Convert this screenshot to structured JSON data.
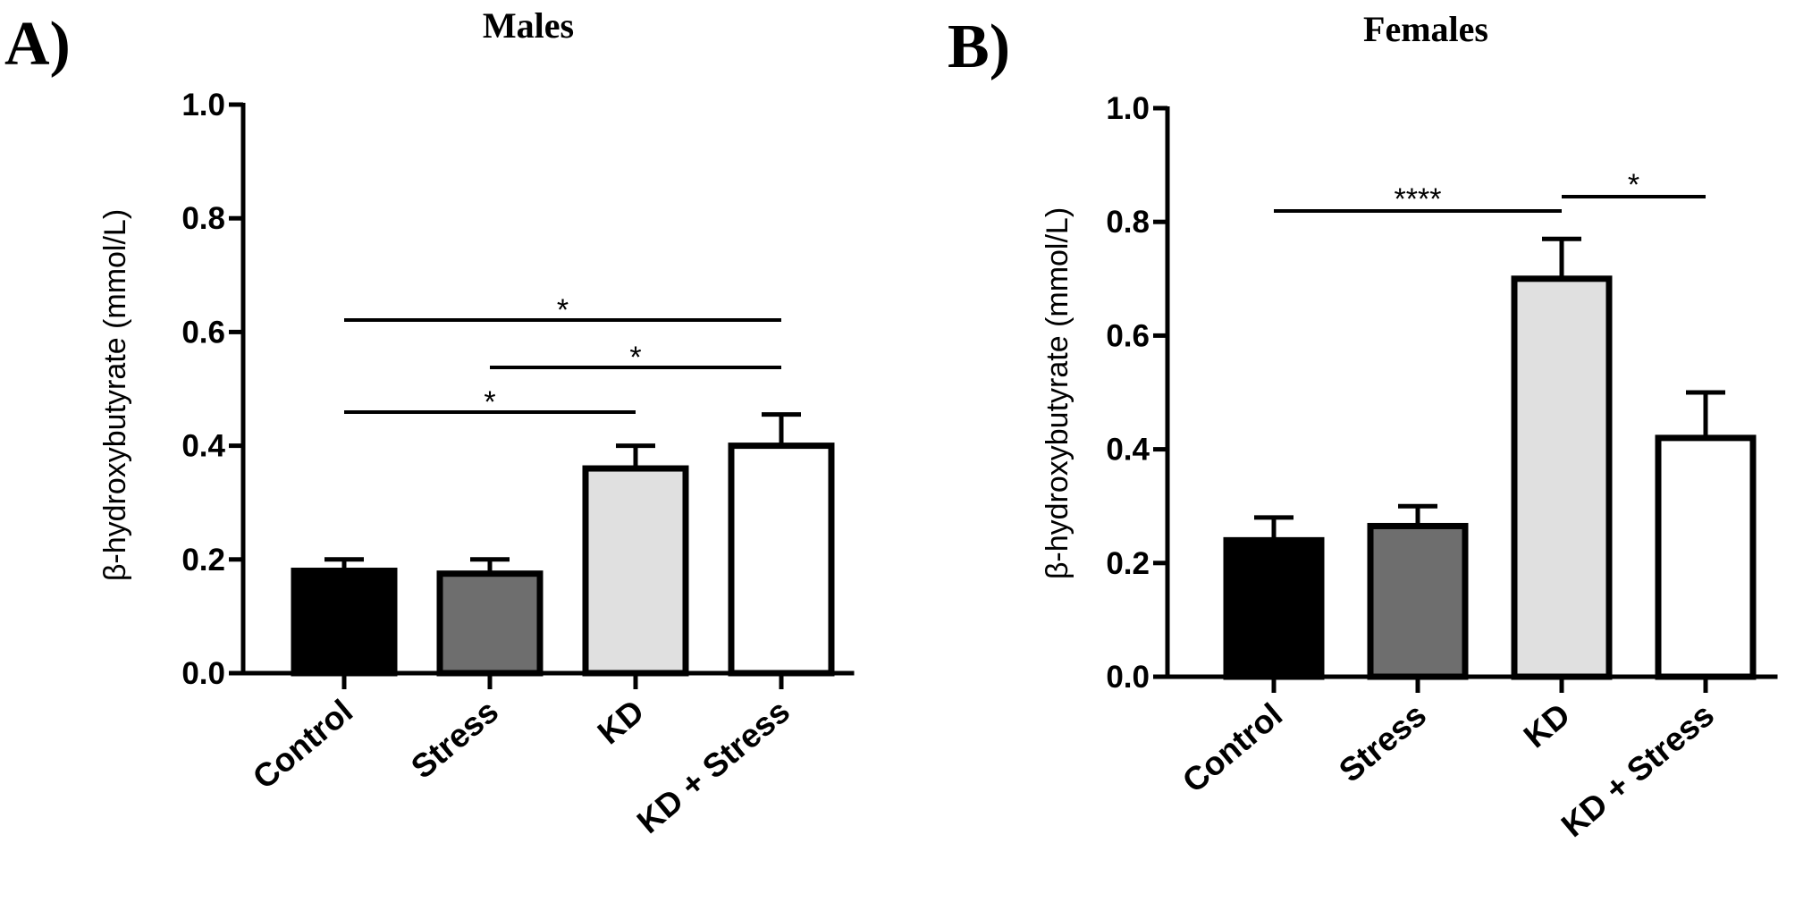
{
  "panels": [
    {
      "letter": "A)",
      "title": "Males",
      "ylabel": "β-hydroxybutyrate (mmol/L)",
      "tick_labels": [
        "0.0",
        "0.2",
        "0.4",
        "0.6",
        "0.8",
        "1.0"
      ]
    },
    {
      "letter": "B)",
      "title": "Females",
      "ylabel": "β-hydroxybutyrate (mmol/L)",
      "tick_labels": [
        "0.0",
        "0.2",
        "0.4",
        "0.6",
        "0.8",
        "1.0"
      ]
    }
  ],
  "chart_data": [
    {
      "type": "bar",
      "title": "Males",
      "ylabel": "β-hydroxybutyrate (mmol/L)",
      "xlabel": "",
      "ylim": [
        0,
        1.0
      ],
      "yticks": [
        0.0,
        0.2,
        0.4,
        0.6,
        0.8,
        1.0
      ],
      "categories": [
        "Control",
        "Stress",
        "KD",
        "KD + Stress"
      ],
      "values": [
        0.18,
        0.175,
        0.36,
        0.4
      ],
      "errors": [
        0.02,
        0.025,
        0.04,
        0.055
      ],
      "bar_colors": [
        "#000000",
        "#6e6e6e",
        "#e0e0e0",
        "#ffffff"
      ],
      "significance": [
        {
          "from": 0,
          "to": 3,
          "label": "*"
        },
        {
          "from": 1,
          "to": 3,
          "label": "*"
        },
        {
          "from": 0,
          "to": 2,
          "label": "*"
        }
      ],
      "grid": false,
      "legend": "none"
    },
    {
      "type": "bar",
      "title": "Females",
      "ylabel": "β-hydroxybutyrate (mmol/L)",
      "xlabel": "",
      "ylim": [
        0,
        1.0
      ],
      "yticks": [
        0.0,
        0.2,
        0.4,
        0.6,
        0.8,
        1.0
      ],
      "categories": [
        "Control",
        "Stress",
        "KD",
        "KD + Stress"
      ],
      "values": [
        0.24,
        0.265,
        0.7,
        0.42
      ],
      "errors": [
        0.04,
        0.035,
        0.07,
        0.08
      ],
      "bar_colors": [
        "#000000",
        "#6e6e6e",
        "#e0e0e0",
        "#ffffff"
      ],
      "significance": [
        {
          "from": 0,
          "to": 2,
          "label": "****"
        },
        {
          "from": 2,
          "to": 3,
          "label": "*"
        }
      ],
      "grid": false,
      "legend": "none"
    }
  ]
}
